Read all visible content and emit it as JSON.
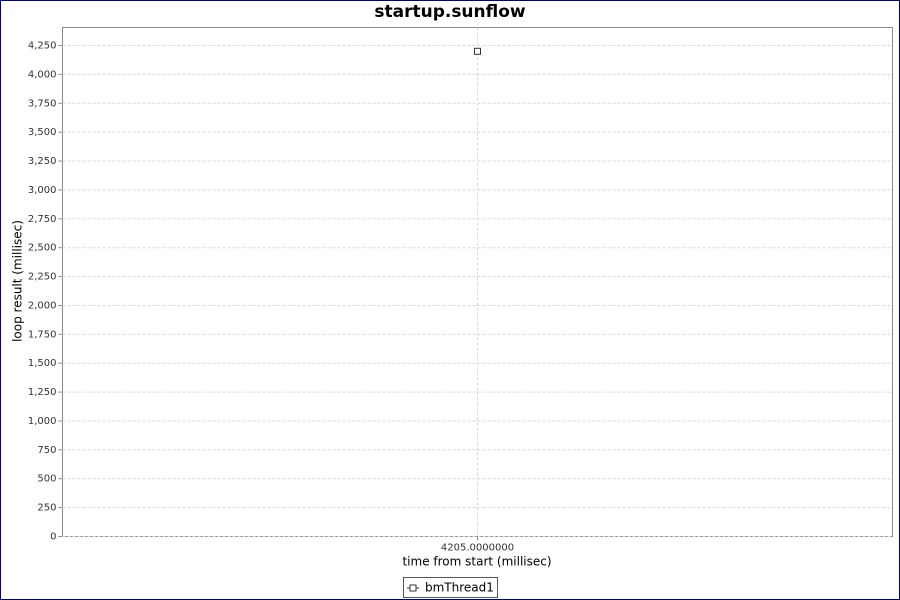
{
  "chart_data": {
    "type": "line",
    "title": "startup.sunflow",
    "x_label": "time from start (millisec)",
    "y_label": "loop result (millisec)",
    "x": [
      4205
    ],
    "series": [
      {
        "name": "bmThread1",
        "color": "#333333",
        "values": [
          4200
        ]
      }
    ],
    "xlim": [
      4204,
      4206
    ],
    "xticks": [
      {
        "value": 4205,
        "label": "4205.0000000"
      }
    ],
    "ylim": [
      0,
      4406
    ],
    "yticks": [
      0,
      250,
      500,
      750,
      {
        "value": 1000,
        "label": "1,000"
      },
      {
        "value": 1250,
        "label": "1,250"
      },
      {
        "value": 1500,
        "label": "1,500"
      },
      {
        "value": 1750,
        "label": "1,750"
      },
      {
        "value": 2000,
        "label": "2,000"
      },
      {
        "value": 2250,
        "label": "2,250"
      },
      {
        "value": 2500,
        "label": "2,500"
      },
      {
        "value": 2750,
        "label": "2,750"
      },
      {
        "value": 3000,
        "label": "3,000"
      },
      {
        "value": 3250,
        "label": "3,250"
      },
      {
        "value": 3500,
        "label": "3,500"
      },
      {
        "value": 3750,
        "label": "3,750"
      },
      {
        "value": 4000,
        "label": "4,000"
      },
      {
        "value": 4250,
        "label": "4,250"
      }
    ],
    "grid": true,
    "legend": "bottom"
  }
}
